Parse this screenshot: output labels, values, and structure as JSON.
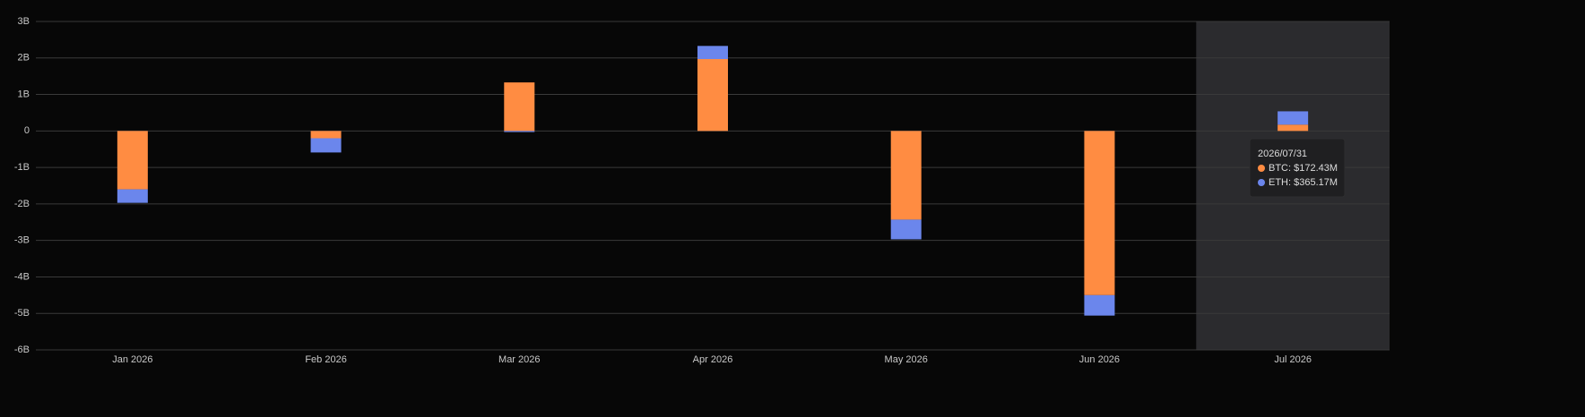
{
  "chart_data": {
    "type": "stacked_bar",
    "categories": [
      "Jan 2026",
      "Feb 2026",
      "Mar 2026",
      "Apr 2026",
      "May 2026",
      "Jun 2026",
      "Jul 2026"
    ],
    "series": [
      {
        "name": "BTC",
        "color": "#ff8c42",
        "values": [
          -1.6,
          -0.2,
          1.33,
          1.97,
          -2.43,
          -4.5,
          0.17243
        ]
      },
      {
        "name": "ETH",
        "color": "#6b86ec",
        "values": [
          -0.37,
          -0.39,
          -0.03,
          0.36,
          -0.54,
          -0.56,
          0.36517
        ]
      }
    ],
    "ylim": [
      -6,
      3
    ],
    "yticks": [
      {
        "value": 3,
        "label": "3B"
      },
      {
        "value": 2,
        "label": "2B"
      },
      {
        "value": 1,
        "label": "1B"
      },
      0,
      {
        "value": -1,
        "label": "-1B"
      },
      {
        "value": -2,
        "label": "-2B"
      },
      {
        "value": -3,
        "label": "-3B"
      },
      {
        "value": -4,
        "label": "-4B"
      },
      {
        "value": -5,
        "label": "-5B"
      },
      {
        "value": -6,
        "label": "-6B"
      }
    ],
    "grid": true,
    "highlight_index": 6,
    "tooltip": {
      "title": "2026/07/31",
      "items": [
        "BTC: $172.43M",
        "ETH: $365.17M"
      ]
    }
  }
}
